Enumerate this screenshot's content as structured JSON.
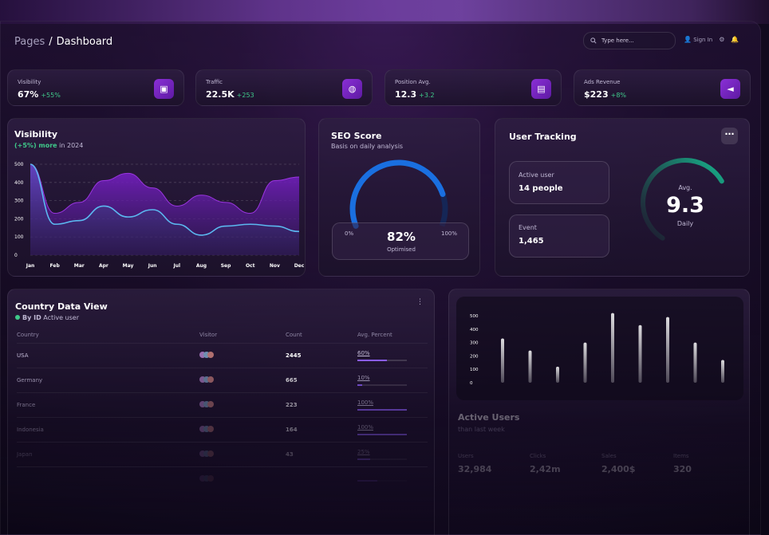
{
  "breadcrumb": {
    "root": "Pages",
    "separator": "/",
    "current": "Dashboard"
  },
  "topbar": {
    "search_placeholder": "Type here...",
    "sign_in": "Sign In"
  },
  "stats": [
    {
      "label": "Visibility",
      "value": "67%",
      "change": "+55%",
      "icon": "wallet-icon"
    },
    {
      "label": "Traffic",
      "value": "22.5K",
      "change": "+253",
      "icon": "globe-icon"
    },
    {
      "label": "Position Avg.",
      "value": "12.3",
      "change": "+3.2",
      "icon": "document-icon"
    },
    {
      "label": "Ads Revenue",
      "value": "$223",
      "change": "+8%",
      "icon": "megaphone-icon"
    }
  ],
  "visibility": {
    "title": "Visibility",
    "sub_highlight": "(+5%) more",
    "sub_rest": " in 2024"
  },
  "chart_data": [
    {
      "type": "area",
      "title": "Visibility",
      "categories": [
        "Jan",
        "Feb",
        "Mar",
        "Apr",
        "May",
        "Jun",
        "Jul",
        "Aug",
        "Sep",
        "Oct",
        "Nov",
        "Dec"
      ],
      "ylim": [
        0,
        500
      ],
      "yticks": [
        0,
        100,
        200,
        300,
        400,
        500
      ],
      "grid": true,
      "series": [
        {
          "values": [
            500,
            230,
            290,
            410,
            450,
            370,
            270,
            330,
            290,
            230,
            410,
            430
          ],
          "color": "#7a2bc4"
        },
        {
          "values": [
            500,
            170,
            190,
            270,
            210,
            250,
            170,
            110,
            160,
            170,
            160,
            130
          ],
          "color": "#5bb8f0"
        }
      ]
    },
    {
      "type": "bar",
      "ylim": [
        0,
        500
      ],
      "yticks": [
        0,
        100,
        200,
        300,
        400,
        500
      ],
      "values": [
        330,
        240,
        120,
        300,
        520,
        430,
        490,
        300,
        170
      ]
    }
  ],
  "seo": {
    "title": "SEO Score",
    "subtitle": "Basis on daily analysis",
    "min": "0%",
    "max": "100%",
    "value": "82%",
    "percent": 82,
    "caption": "Optimised"
  },
  "tracking": {
    "title": "User Tracking",
    "active_label": "Active user",
    "active_value": "14 people",
    "event_label": "Event",
    "event_value": "1,465",
    "gauge_label": "Avg.",
    "gauge_value": "9.3",
    "gauge_caption": "Daily",
    "gauge_fraction": 0.72
  },
  "country": {
    "title": "Country Data View",
    "sub_bold": "By ID",
    "sub_rest": " Active user",
    "columns": [
      "Country",
      "Visitor",
      "Count",
      "Avg. Percent"
    ],
    "rows": [
      {
        "country": "USA",
        "count": "2445",
        "percent": "60%",
        "pct": 60
      },
      {
        "country": "Germany",
        "count": "665",
        "percent": "10%",
        "pct": 10
      },
      {
        "country": "France",
        "count": "223",
        "percent": "100%",
        "pct": 100
      },
      {
        "country": "Indonesia",
        "count": "164",
        "percent": "100%",
        "pct": 100
      },
      {
        "country": "Japan",
        "count": "43",
        "percent": "25%",
        "pct": 25
      },
      {
        "country": "",
        "count": "",
        "percent": "",
        "pct": 40
      }
    ]
  },
  "active_users": {
    "title": "Active Users",
    "subtitle": "than last week",
    "stats": [
      {
        "label": "Users",
        "value": "32,984"
      },
      {
        "label": "Clicks",
        "value": "2,42m"
      },
      {
        "label": "Sales",
        "value": "2,400$"
      },
      {
        "label": "Items",
        "value": "320"
      }
    ]
  },
  "colors": {
    "accent": "#8a2fd6",
    "positive": "#3fc98a",
    "gauge_blue": "#1a6fe0",
    "gauge_green": "#17b890"
  }
}
